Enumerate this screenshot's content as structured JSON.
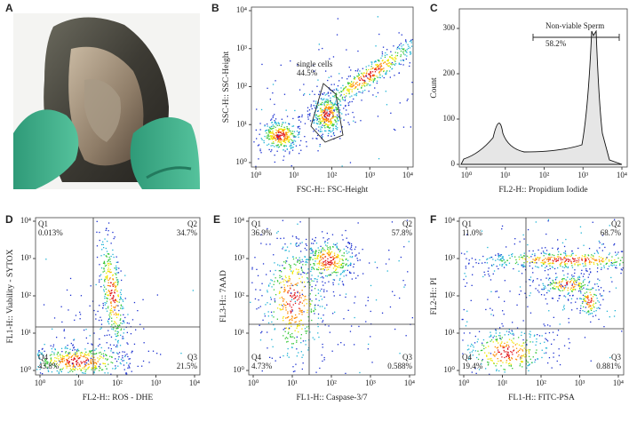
{
  "figure": {
    "panels": [
      {
        "letter": "A"
      },
      {
        "letter": "B",
        "xlabel": "FSC-H:: FSC-Height",
        "ylabel": "SSC-H:: SSC-Height",
        "xticks": [
          "10⁰",
          "10¹",
          "10²",
          "10³",
          "10⁴"
        ],
        "yticks": [
          "10⁰",
          "10¹",
          "10²",
          "10³",
          "10⁴"
        ],
        "gate": {
          "name": "single cells",
          "percent": "44.5%"
        }
      },
      {
        "letter": "C",
        "xlabel": "FL2-H:: Propidium Iodide",
        "ylabel": "Count",
        "xticks": [
          "10⁰",
          "10¹",
          "10²",
          "10³",
          "10⁴"
        ],
        "yticks": [
          0,
          100,
          200,
          300
        ],
        "gate": {
          "name": "Non-viable Sperm",
          "percent": "58.2%"
        }
      },
      {
        "letter": "D",
        "xlabel": "FL2-H:: ROS - DHE",
        "ylabel": "FL1-H:: Viability - SYTOX",
        "xticks": [
          "10⁰",
          "10¹",
          "10²",
          "10³",
          "10⁴"
        ],
        "yticks": [
          "10⁰",
          "10¹",
          "10²",
          "10³",
          "10⁴"
        ],
        "quadrants": [
          {
            "name": "Q1",
            "percent": "0.013%"
          },
          {
            "name": "Q2",
            "percent": "34.7%"
          },
          {
            "name": "Q3",
            "percent": "21.5%"
          },
          {
            "name": "Q4",
            "percent": "43.8%"
          }
        ]
      },
      {
        "letter": "E",
        "xlabel": "FL1-H:: Caspase-3/7",
        "ylabel": "FL3-H:: 7AAD",
        "xticks": [
          "10⁰",
          "10¹",
          "10²",
          "10³",
          "10⁴"
        ],
        "yticks": [
          "10⁰",
          "10¹",
          "10²",
          "10³",
          "10⁴"
        ],
        "quadrants": [
          {
            "name": "Q1",
            "percent": "36.9%"
          },
          {
            "name": "Q2",
            "percent": "57.8%"
          },
          {
            "name": "Q3",
            "percent": "0.588%"
          },
          {
            "name": "Q4",
            "percent": "4.73%"
          }
        ]
      },
      {
        "letter": "F",
        "xlabel": "FL1-H:: FITC-PSA",
        "ylabel": "FL2-H:: PI",
        "xticks": [
          "10⁰",
          "10¹",
          "10²",
          "10³",
          "10⁴"
        ],
        "yticks": [
          "10⁰",
          "10¹",
          "10²",
          "10³",
          "10⁴"
        ],
        "quadrants": [
          {
            "name": "Q1",
            "percent": "11.0%"
          },
          {
            "name": "Q2",
            "percent": "68.7%"
          },
          {
            "name": "Q3",
            "percent": "0.881%"
          },
          {
            "name": "Q4",
            "percent": "19.4%"
          }
        ]
      }
    ]
  }
}
